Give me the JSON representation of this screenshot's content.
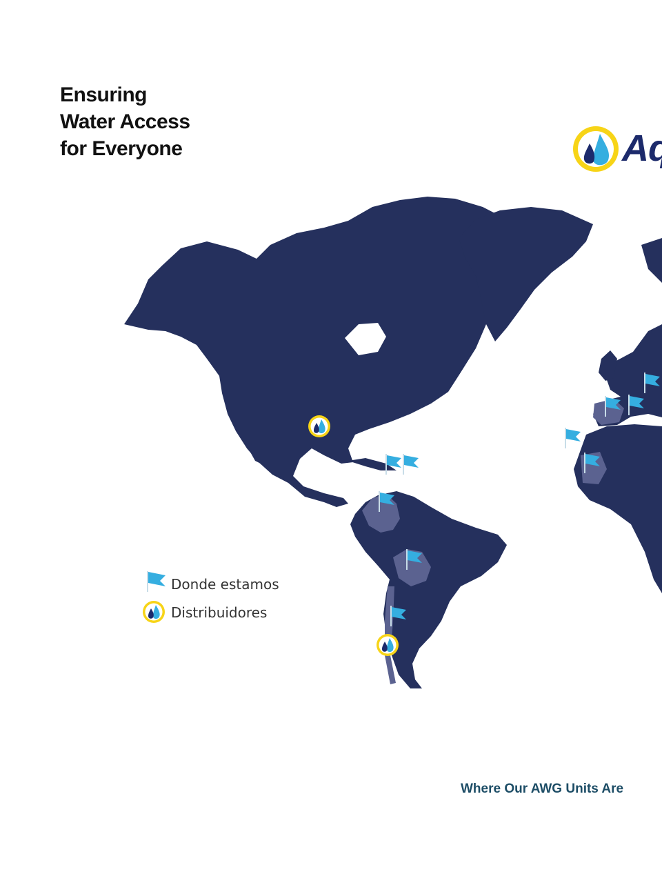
{
  "headline": "Ensuring Water Access for Everyone",
  "logo": {
    "text": "Aq"
  },
  "legend": {
    "flag_label": "Donde estamos",
    "distributor_label": "Distribuidores"
  },
  "caption": "Where Our AWG Units Are",
  "colors": {
    "land": "#25305d",
    "highlighted_country": "#5b6290",
    "flag": "#35aee0",
    "distributor_ring": "#f7d417",
    "heading": "#111111",
    "caption": "#1d4d66"
  },
  "icons": {
    "flag": "flag-icon",
    "distributor": "water-drop-icon"
  }
}
